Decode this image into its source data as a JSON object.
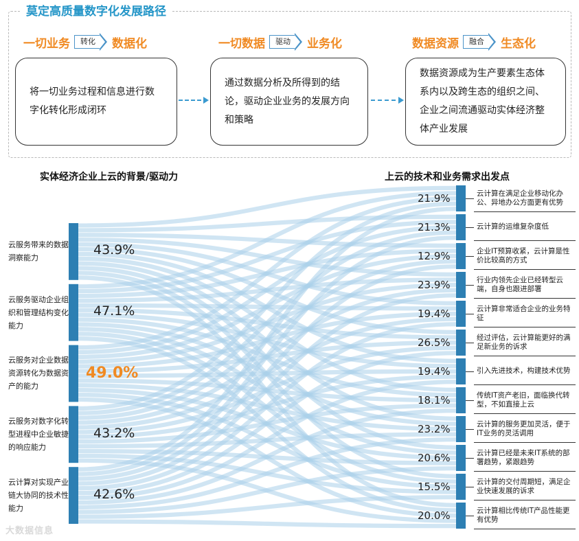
{
  "header": {
    "title": "莫定高质量数字化发展路径"
  },
  "stages": [
    {
      "from": "一切业务",
      "verb": "转化",
      "to": "数据化",
      "desc": "将一切业务过程和信息进行数字化转化形成闭环"
    },
    {
      "from": "一切数据",
      "verb": "驱动",
      "to": "业务化",
      "desc": "通过数据分析及所得到的结论，驱动企业业务的发展方向和策略"
    },
    {
      "from": "数据资源",
      "verb": "融合",
      "to": "生态化",
      "desc": "数据资源成为生产要素生态体系内以及跨生态的组织之间、企业之间流通驱动实体经济整体产业发展"
    }
  ],
  "chart_data": {
    "type": "sankey",
    "left_title": "实体经济企业上云的背景/驱动力",
    "right_title": "上云的技术和业务需求出发点",
    "left_nodes": [
      {
        "label": "云服务带来的数据洞察能力",
        "value": "43.9%",
        "highlight": false
      },
      {
        "label": "云服务驱动企业组织和管理结构变化能力",
        "value": "47.1%",
        "highlight": false
      },
      {
        "label": "云服务对企业数据资源转化为数据资产的能力",
        "value": "49.0%",
        "highlight": true
      },
      {
        "label": "云服务对数字化转型进程中企业敏捷的响应能力",
        "value": "43.2%",
        "highlight": false
      },
      {
        "label": "云计算对实现产业链大协同的技术性能力",
        "value": "42.6%",
        "highlight": false
      }
    ],
    "right_nodes": [
      {
        "label": "云计算在满足企业移动化办公、异地办公方面更有优势",
        "value": "21.9%"
      },
      {
        "label": "云计算的运维复杂度低",
        "value": "21.3%"
      },
      {
        "label": "企业IT预算收紧，云计算是性价比较高的方式",
        "value": "12.9%"
      },
      {
        "label": "行业内领先企业已经转型云端，自身也跟进部署",
        "value": "23.9%"
      },
      {
        "label": "云计算非常适合企业的业务特征",
        "value": "19.4%"
      },
      {
        "label": "经过评估，云计算能更好的满足新业务的诉求",
        "value": "26.5%"
      },
      {
        "label": "引入先进技术，构建技术优势",
        "value": "19.4%"
      },
      {
        "label": "传统IT资产老旧，面临换代转型，不如直接上云",
        "value": "18.1%"
      },
      {
        "label": "云计算的服务更加灵活，便于IT业务的灵活调用",
        "value": "23.2%"
      },
      {
        "label": "云计算已经是未来IT系统的部署趋势，紧跟趋势",
        "value": "20.6%"
      },
      {
        "label": "云计算的交付周期短，满足企业快速发展的诉求",
        "value": "15.5%"
      },
      {
        "label": "云计算相比传统IT产品性能更有优势",
        "value": "20.0%"
      }
    ]
  },
  "watermark": "大数据信息",
  "colors": {
    "accent": "#f08a23",
    "blue": "#2d7fb3",
    "flow": "#a9d0ea"
  }
}
